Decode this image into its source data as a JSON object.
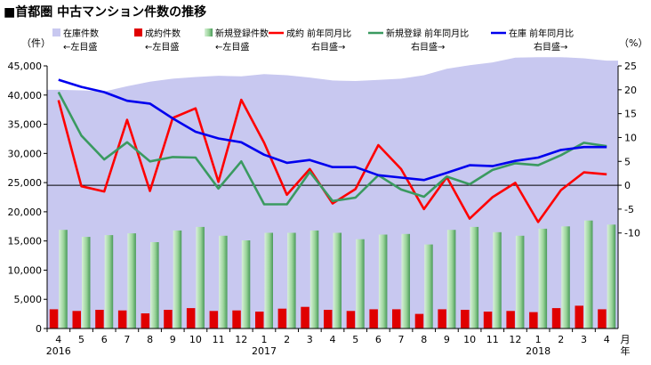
{
  "title": "■首都圏 中古マンション件数の推移",
  "chart_data": {
    "type": "bar",
    "y_left": {
      "unit": "（件）",
      "ylim": [
        0,
        45000
      ],
      "ticks": [
        "0",
        "5,000",
        "10,000",
        "15,000",
        "20,000",
        "25,000",
        "30,000",
        "35,000",
        "40,000",
        "45,000"
      ]
    },
    "y_right": {
      "unit": "（%）",
      "ylim": [
        -30,
        25
      ],
      "ticks": [
        "-10",
        "-5",
        "0",
        "5",
        "10",
        "15",
        "20",
        "25"
      ]
    },
    "x_axis_suffix": "月年",
    "categories": [
      "4",
      "5",
      "6",
      "7",
      "8",
      "9",
      "10",
      "11",
      "12",
      "1",
      "2",
      "3",
      "4",
      "5",
      "6",
      "7",
      "8",
      "9",
      "10",
      "11",
      "12",
      "1",
      "2",
      "3",
      "4"
    ],
    "years": [
      {
        "label": "2016",
        "index": 0
      },
      {
        "label": "2017",
        "index": 9
      },
      {
        "label": "2018",
        "index": 21
      }
    ],
    "legend": [
      {
        "name": "在庫件数",
        "note": "←左目盛"
      },
      {
        "name": "成約件数",
        "note": "←左目盛"
      },
      {
        "name": "新規登録件数",
        "note": "←左目盛"
      },
      {
        "name": "成約 前年同月比",
        "note": "右目盛→"
      },
      {
        "name": "新規登録 前年同月比",
        "note": "右目盛→"
      },
      {
        "name": "在庫 前年同月比",
        "note": "右目盛→"
      }
    ],
    "series": [
      {
        "name": "在庫件数",
        "kind": "area",
        "axis": "left",
        "color": "#c8c8f0",
        "values": [
          40900,
          40800,
          40600,
          41500,
          42300,
          42800,
          43100,
          43300,
          43200,
          43600,
          43400,
          43000,
          42500,
          42400,
          42600,
          42800,
          43400,
          44500,
          45100,
          45600,
          46400,
          46500,
          46500,
          46300,
          45900
        ]
      },
      {
        "name": "成約件数",
        "kind": "bar",
        "axis": "left",
        "color": "#e00000",
        "values": [
          3300,
          3000,
          3200,
          3100,
          2600,
          3200,
          3500,
          3000,
          3100,
          2900,
          3400,
          3700,
          3200,
          3000,
          3300,
          3300,
          2500,
          3300,
          3200,
          2900,
          3000,
          2800,
          3500,
          3900,
          3300
        ]
      },
      {
        "name": "新規登録件数",
        "kind": "bar",
        "axis": "left",
        "color": "#8fd08f",
        "values": [
          16900,
          15700,
          16000,
          16300,
          14800,
          16800,
          17400,
          15900,
          15100,
          16400,
          16400,
          16800,
          16400,
          15300,
          16100,
          16200,
          14400,
          16900,
          17400,
          16500,
          15900,
          17100,
          17500,
          18500,
          17800
        ]
      },
      {
        "name": "成約 前年同月比",
        "kind": "line",
        "axis": "right",
        "color": "#ff0000",
        "values": [
          17.8,
          -0.2,
          -1.3,
          13.7,
          -1.2,
          14.1,
          16.1,
          0.7,
          17.9,
          8.9,
          -2.0,
          3.4,
          -3.8,
          -0.8,
          8.4,
          3.4,
          -5.0,
          1.7,
          -7.0,
          -2.5,
          0.5,
          -7.7,
          -1.0,
          2.7,
          2.3
        ]
      },
      {
        "name": "新規登録 前年同月比",
        "kind": "line",
        "axis": "right",
        "color": "#3a9a60",
        "values": [
          19.5,
          10.4,
          5.4,
          9.0,
          5.0,
          5.9,
          5.8,
          -0.7,
          5.0,
          -4.0,
          -4.0,
          2.8,
          -3.3,
          -2.6,
          2.1,
          -0.9,
          -2.4,
          1.8,
          0.2,
          3.2,
          4.6,
          4.2,
          6.3,
          8.9,
          8.2
        ]
      },
      {
        "name": "在庫 前年同月比",
        "kind": "line",
        "axis": "right",
        "color": "#0000ee",
        "values": [
          22.1,
          20.6,
          19.5,
          17.7,
          17.1,
          14.0,
          11.2,
          9.8,
          9.0,
          6.4,
          4.7,
          5.3,
          3.8,
          3.8,
          2.1,
          1.6,
          1.1,
          2.6,
          4.2,
          4.0,
          5.1,
          5.8,
          7.4,
          8.0,
          8.0
        ]
      }
    ]
  }
}
